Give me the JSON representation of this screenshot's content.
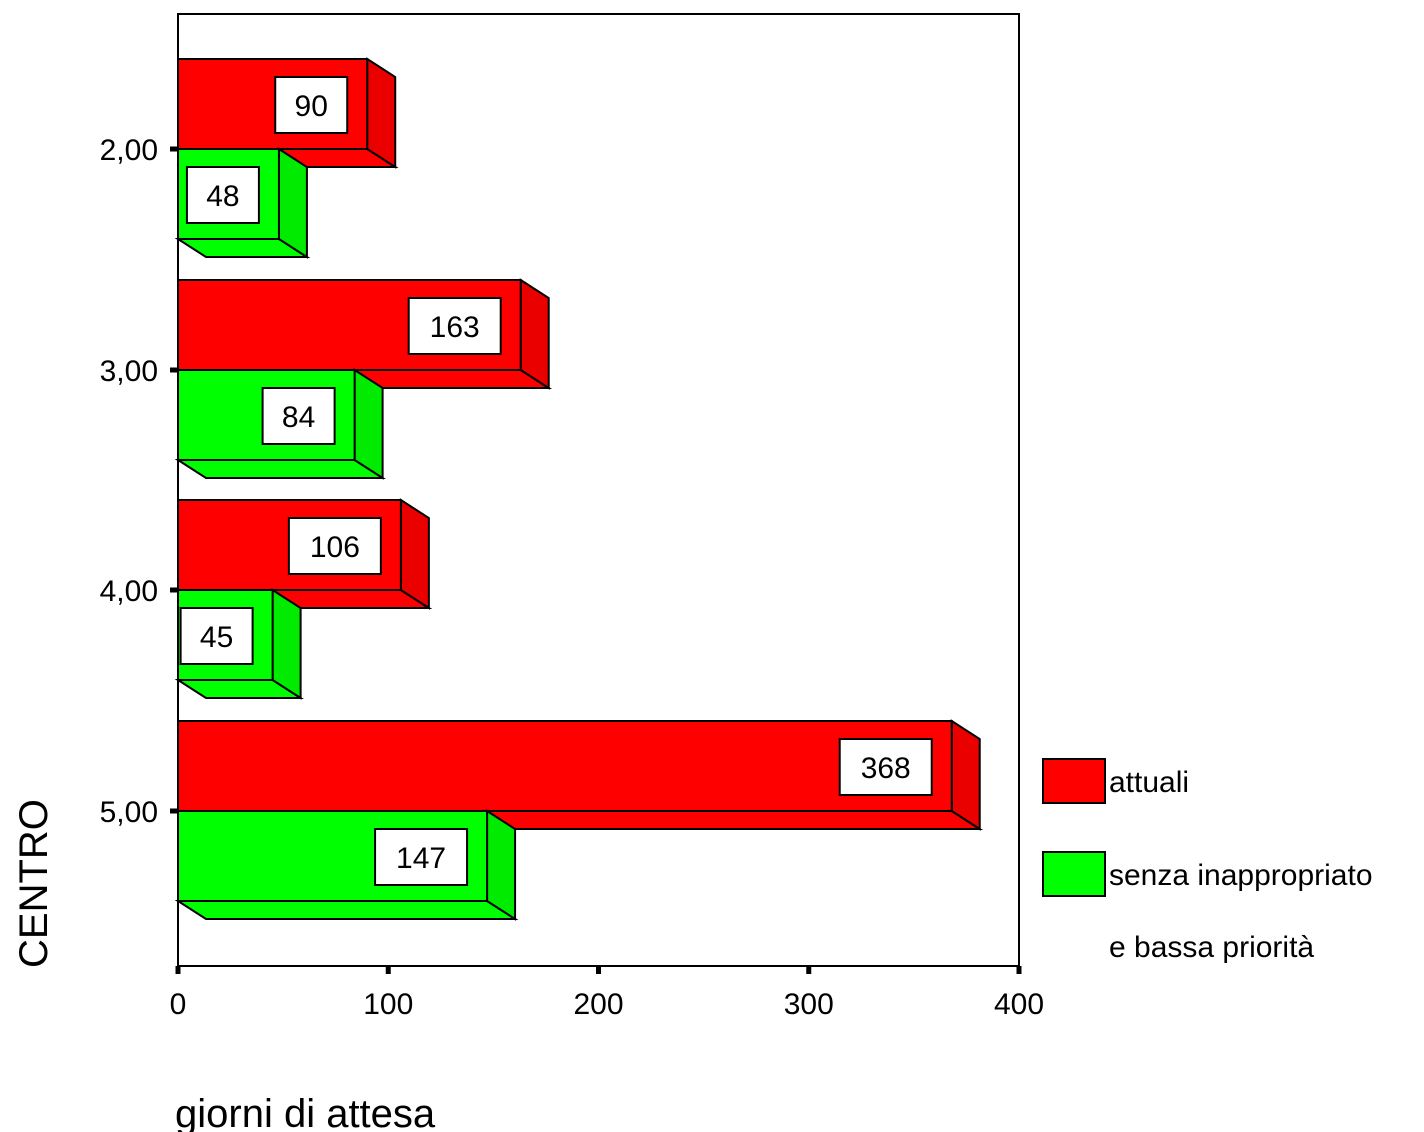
{
  "chart_data": {
    "type": "bar",
    "orientation": "horizontal",
    "style": "3d",
    "categories": [
      "2,00",
      "3,00",
      "4,00",
      "5,00"
    ],
    "series": [
      {
        "name": "attuali",
        "values": [
          90,
          163,
          106,
          368
        ],
        "labels": [
          "90",
          "163",
          "106",
          "368"
        ],
        "color": "#ff0000"
      },
      {
        "name": "senza inappropriato e bassa priorità",
        "legend_lines": [
          "senza inappropriato",
          "e bassa priorità"
        ],
        "values": [
          48,
          84,
          45,
          147
        ],
        "labels": [
          "48",
          "84",
          "45",
          "147"
        ],
        "color": "#00ff00"
      }
    ],
    "xlim": [
      0,
      400
    ],
    "xticks": [
      "0",
      "100",
      "200",
      "300",
      "400"
    ],
    "xtick_values": [
      0,
      100,
      200,
      300,
      400
    ],
    "xlabel": "giorni di attesa",
    "ylabel": "CENTRO",
    "grid": false,
    "legend_position": "right"
  }
}
